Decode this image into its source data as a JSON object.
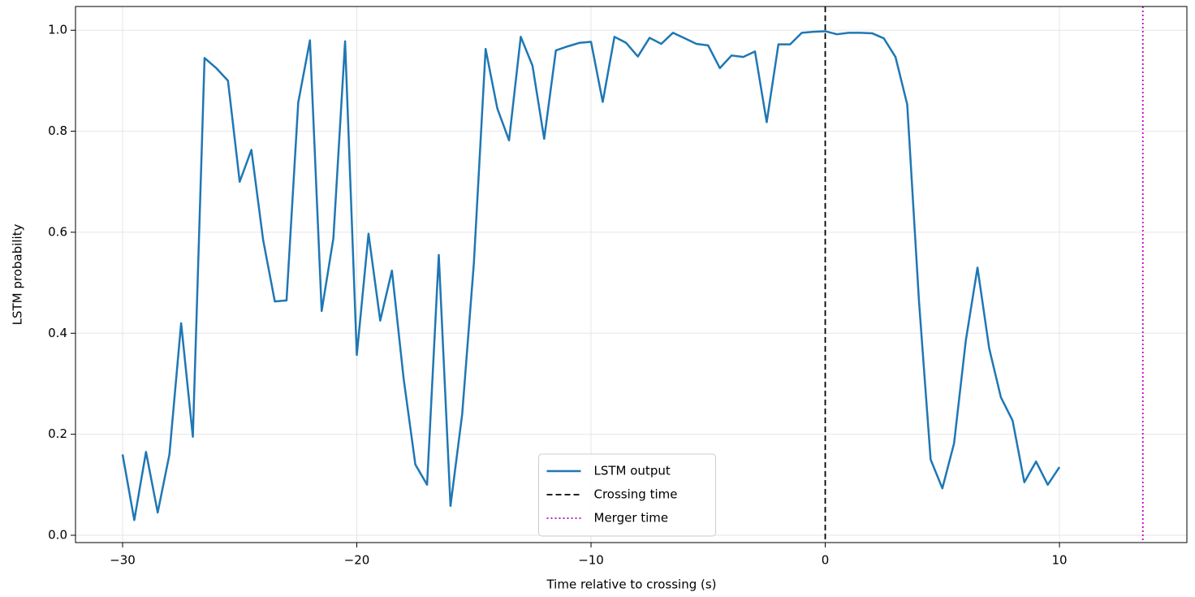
{
  "chart_data": {
    "type": "line",
    "xlabel": "Time relative to crossing (s)",
    "ylabel": "LSTM probability",
    "x": [
      -30,
      -29.5,
      -29,
      -28.5,
      -28,
      -27.5,
      -27,
      -26.5,
      -26,
      -25.5,
      -25,
      -24.5,
      -24,
      -23.5,
      -23,
      -22.5,
      -22,
      -21.5,
      -21,
      -20.5,
      -20,
      -19.5,
      -19,
      -18.5,
      -18,
      -17.5,
      -17,
      -16.5,
      -16,
      -15.5,
      -15,
      -14.5,
      -14,
      -13.5,
      -13,
      -12.5,
      -12,
      -11.5,
      -11,
      -10.5,
      -10,
      -9.5,
      -9,
      -8.5,
      -8,
      -7.5,
      -7,
      -6.5,
      -6,
      -5.5,
      -5,
      -4.5,
      -4,
      -3.5,
      -3,
      -2.5,
      -2,
      -1.5,
      -1,
      -0.5,
      0,
      0.5,
      1,
      1.5,
      2,
      2.5,
      3,
      3.5,
      4,
      4.5,
      5,
      5.5,
      6,
      6.5,
      7,
      7.5,
      8,
      8.5,
      9,
      9.5,
      10
    ],
    "series": [
      {
        "name": "LSTM output",
        "color": "#1f77b4",
        "values": [
          0.16,
          0.03,
          0.165,
          0.045,
          0.16,
          0.42,
          0.195,
          0.945,
          0.925,
          0.9,
          0.7,
          0.763,
          0.585,
          0.463,
          0.465,
          0.857,
          0.98,
          0.444,
          0.588,
          0.978,
          0.357,
          0.597,
          0.425,
          0.524,
          0.31,
          0.14,
          0.1,
          0.555,
          0.058,
          0.24,
          0.54,
          0.963,
          0.845,
          0.782,
          0.987,
          0.93,
          0.785,
          0.96,
          0.968,
          0.975,
          0.977,
          0.858,
          0.987,
          0.975,
          0.948,
          0.985,
          0.973,
          0.995,
          0.984,
          0.973,
          0.97,
          0.925,
          0.95,
          0.947,
          0.958,
          0.818,
          0.972,
          0.972,
          0.995,
          0.997,
          0.998,
          0.992,
          0.995,
          0.995,
          0.994,
          0.984,
          0.947,
          0.853,
          0.465,
          0.15,
          0.093,
          0.182,
          0.385,
          0.53,
          0.37,
          0.273,
          0.227,
          0.105,
          0.146,
          0.1,
          0.135
        ]
      }
    ],
    "vlines": [
      {
        "name": "Crossing time",
        "x": 0,
        "color": "#000000",
        "style": "dashed"
      },
      {
        "name": "Merger time",
        "x": 13.56,
        "color": "#bf00bf",
        "style": "dotted"
      }
    ],
    "xlim": [
      -32.01,
      15.44
    ],
    "xticks": [
      {
        "value": -30,
        "label": "−30"
      },
      {
        "value": -20,
        "label": "−20"
      },
      {
        "value": -10,
        "label": "−10"
      },
      0,
      10
    ],
    "ylim": [
      -0.0145,
      1.047
    ],
    "yticks": [
      {
        "value": 0,
        "label": "0.0"
      },
      0.2,
      0.4,
      0.6,
      0.8,
      {
        "value": 1,
        "label": "1.0"
      }
    ],
    "grid": true,
    "legend": "lower center"
  }
}
